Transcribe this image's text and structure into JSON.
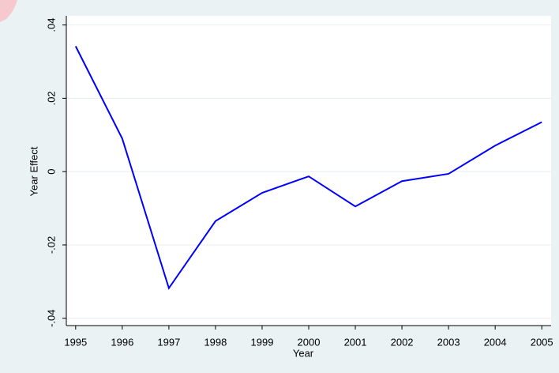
{
  "chart_data": {
    "type": "line",
    "x": [
      1995,
      1996,
      1997,
      1998,
      1999,
      2000,
      2001,
      2002,
      2003,
      2004,
      2005
    ],
    "series": [
      {
        "color": "#0000ff",
        "values": [
          0.0342,
          0.009,
          -0.0318,
          -0.0135,
          -0.0058,
          -0.0013,
          -0.0095,
          -0.0026,
          -0.0006,
          0.0071,
          0.0135
        ]
      }
    ],
    "xlabel": "Year",
    "ylabel": "Year Effect",
    "xlim": [
      1994.8,
      2005.2
    ],
    "ylim": [
      -0.042,
      0.0425
    ],
    "xticks": [
      1995,
      1996,
      1997,
      1998,
      1999,
      2000,
      2001,
      2002,
      2003,
      2004,
      2005
    ],
    "yticks": [
      {
        "value": -0.04,
        "label": "-.04"
      },
      {
        "value": -0.02,
        "label": "-.02"
      },
      0,
      {
        "value": 0.02,
        "label": ".02"
      },
      {
        "value": 0.04,
        "label": ".04"
      }
    ],
    "grid": true
  }
}
